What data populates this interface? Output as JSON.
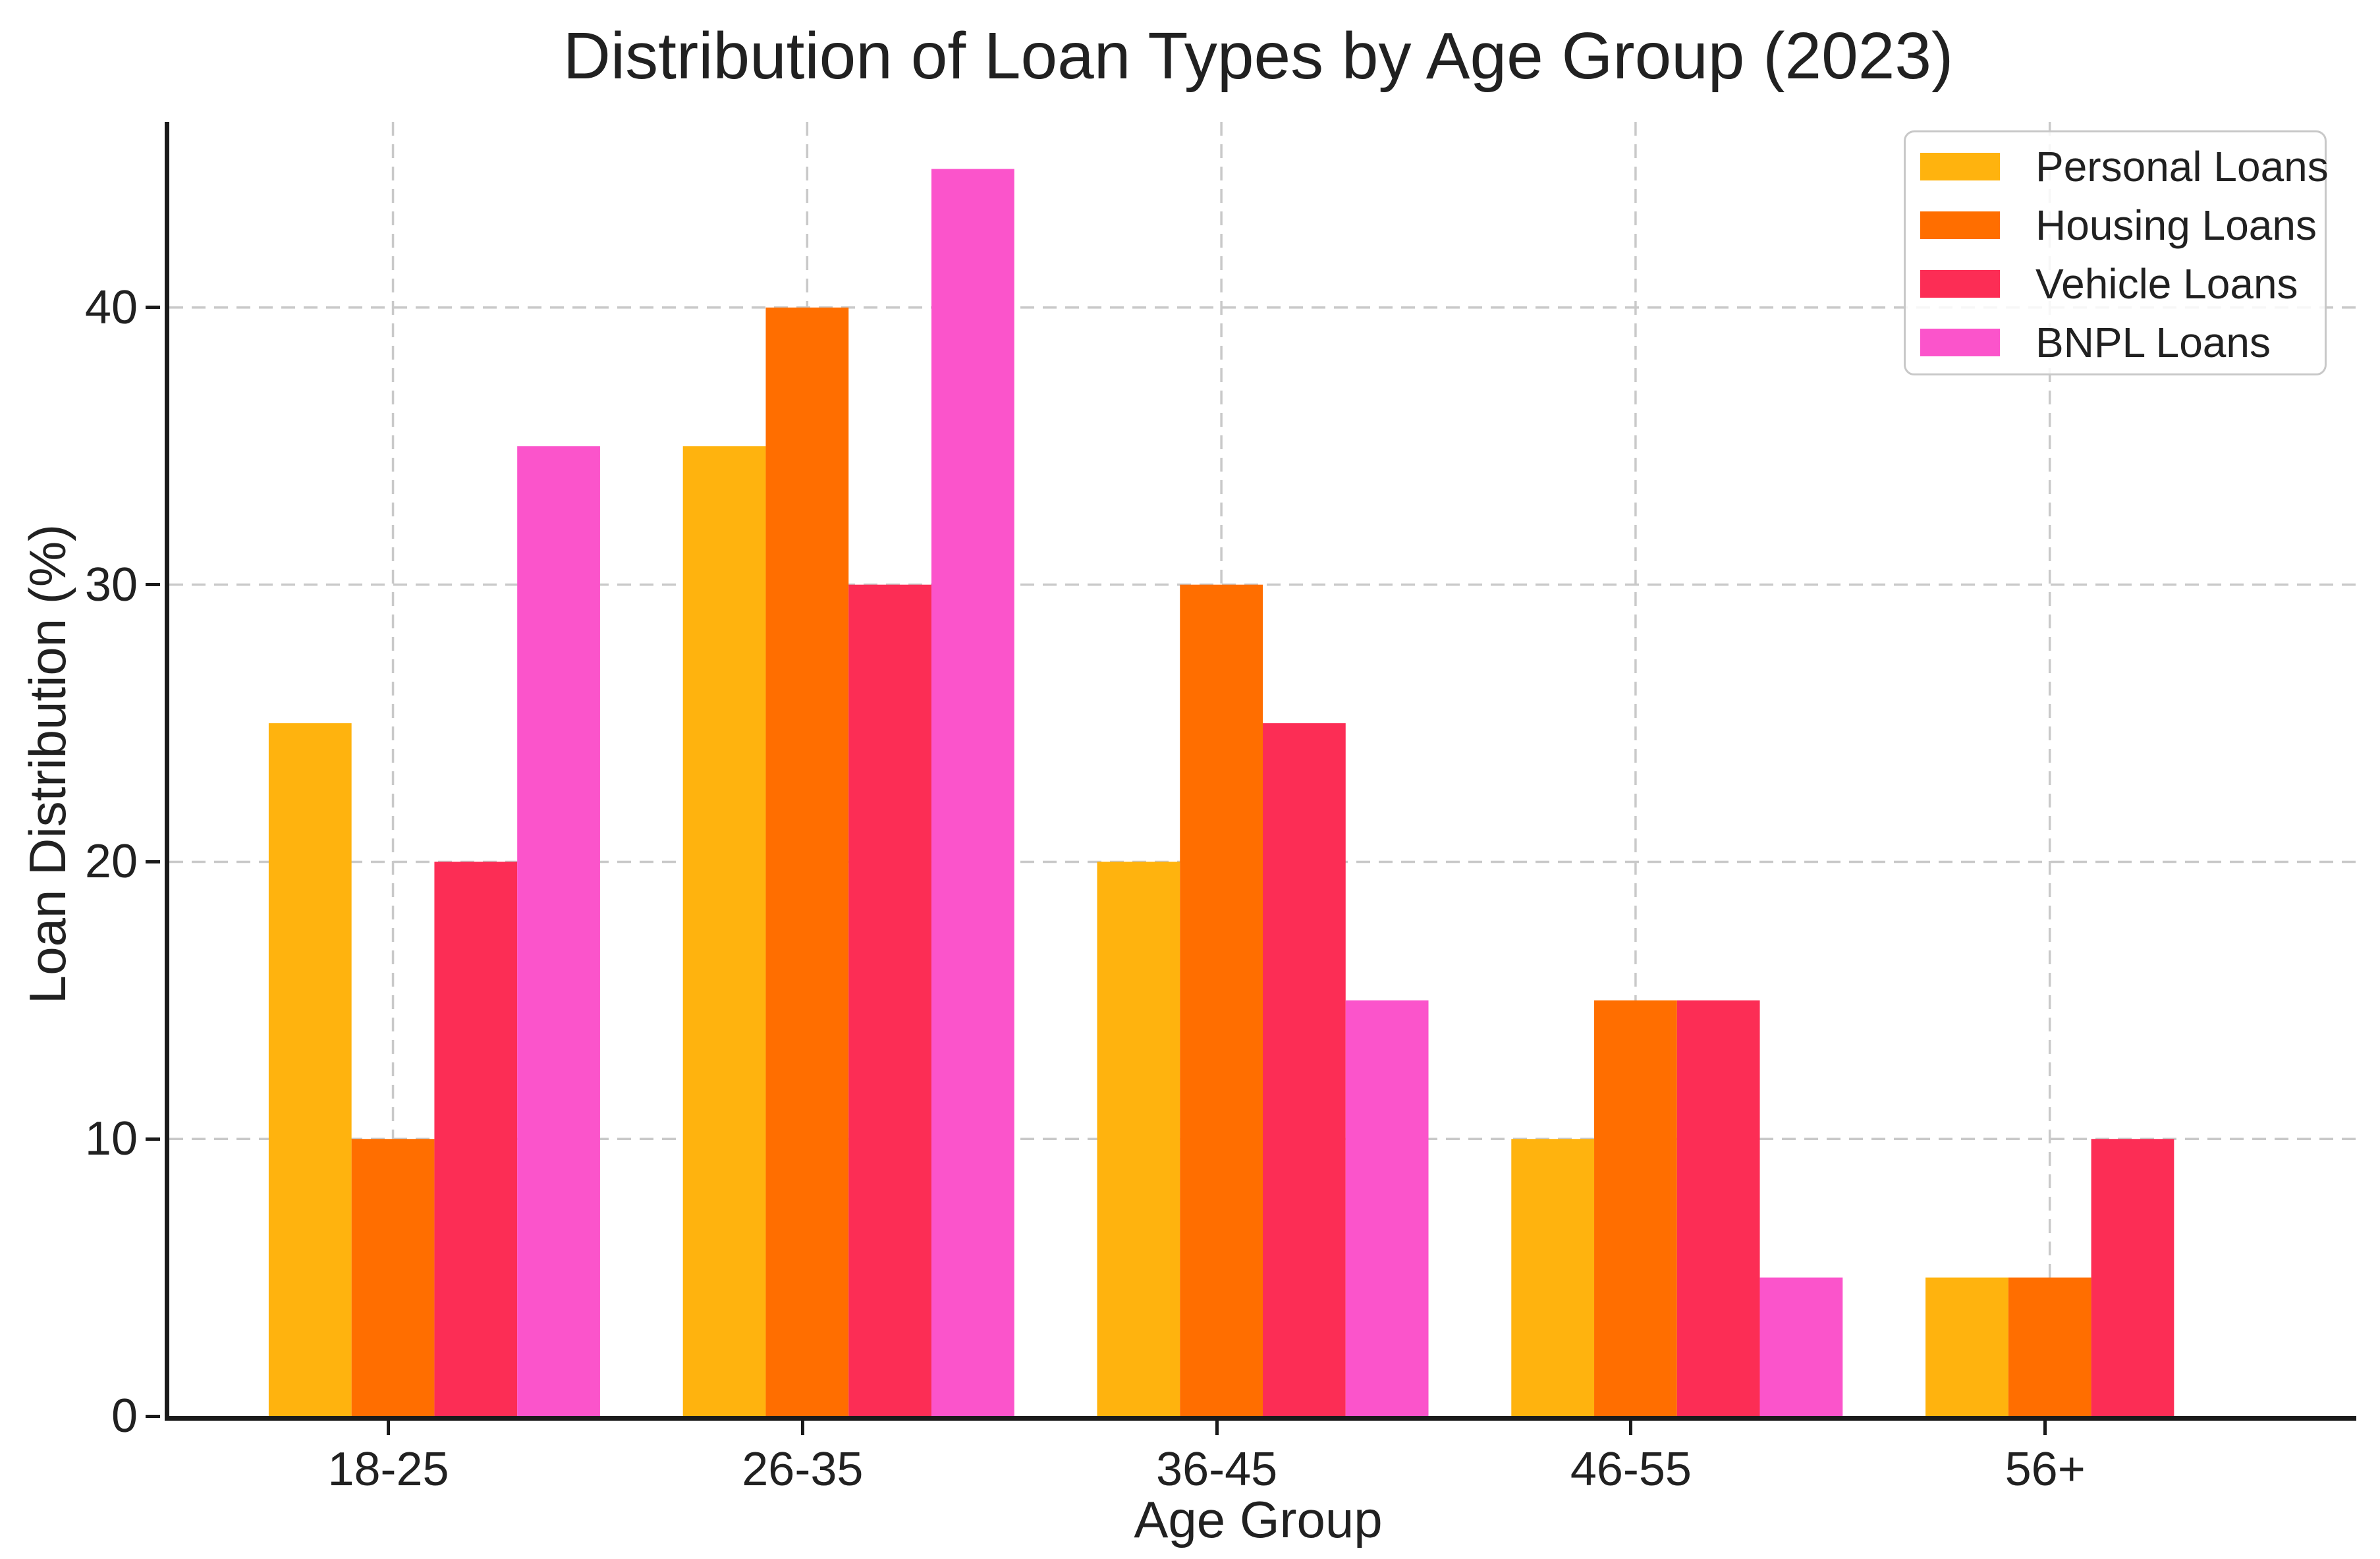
{
  "figure": {
    "background": "#ffffff",
    "axis_color": "#1a1a1a",
    "text_color": "#212121",
    "grid_color": "#c9c9c9"
  },
  "chart_data": {
    "type": "bar",
    "title": "Distribution of Loan Types by Age Group (2023)",
    "xlabel": "Age Group",
    "ylabel": "Loan Distribution (%)",
    "categories": [
      "18-25",
      "26-35",
      "36-45",
      "46-55",
      "56+"
    ],
    "series": [
      {
        "name": "Personal Loans",
        "color": "#FFB30E",
        "values": [
          25,
          35,
          20,
          10,
          5
        ]
      },
      {
        "name": "Housing Loans",
        "color": "#FF6E00",
        "values": [
          10,
          40,
          30,
          15,
          5
        ]
      },
      {
        "name": "Vehicle Loans",
        "color": "#FC2D55",
        "values": [
          20,
          30,
          25,
          15,
          10
        ]
      },
      {
        "name": "BNPL Loans",
        "color": "#FB54CB",
        "values": [
          35,
          45,
          15,
          5,
          0
        ]
      }
    ],
    "yticks": [
      0,
      10,
      20,
      30,
      40
    ],
    "ylim": [
      0,
      46.7
    ],
    "grid": true,
    "grid_style": "dashed",
    "legend_position": "upper right",
    "bar_width_units": 0.2,
    "unit_offsets": [
      -0.2,
      0,
      0.2,
      0.4
    ]
  }
}
